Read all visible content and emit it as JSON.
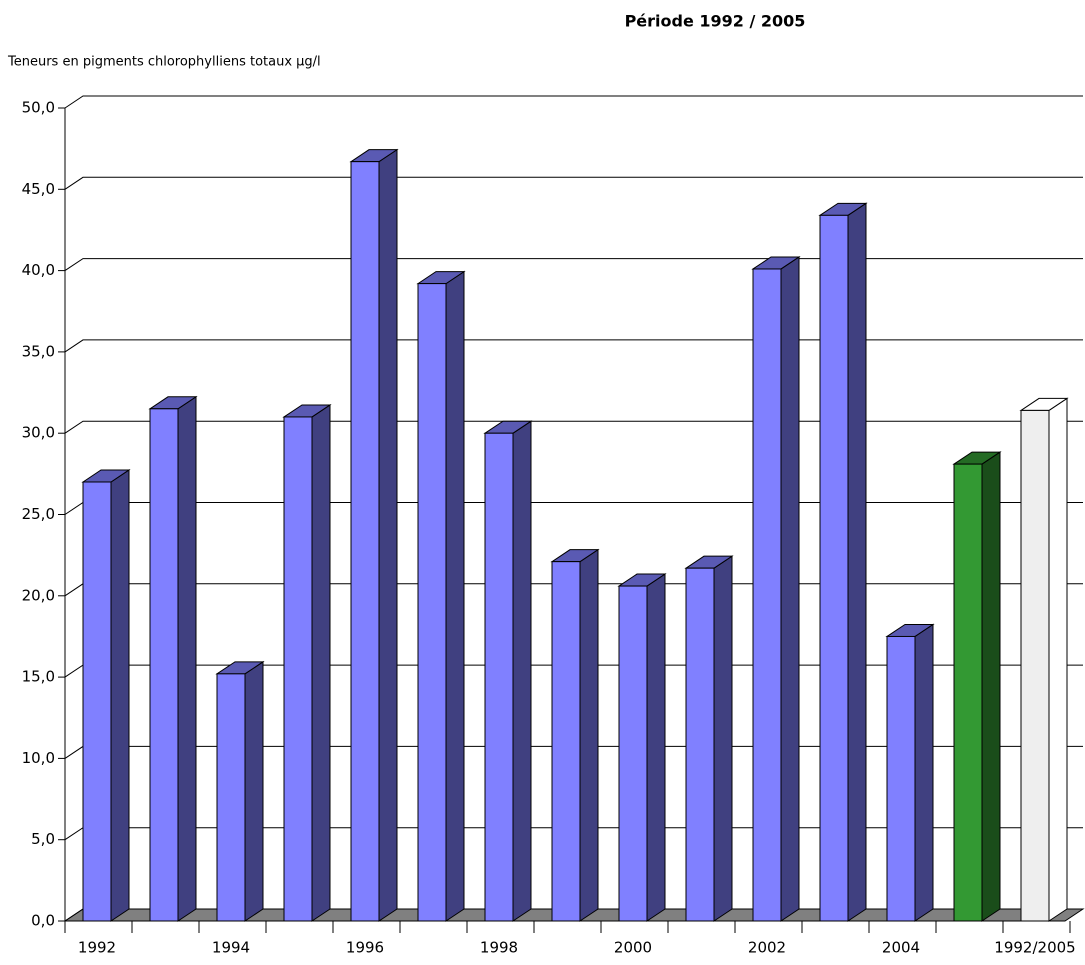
{
  "chart_data": {
    "type": "bar3d",
    "title": "Période 1992 / 2005",
    "y_axis_label": "Teneurs en pigments chlorophylliens totaux µg/l",
    "categories": [
      "1992",
      null,
      "1994",
      null,
      "1996",
      null,
      "1998",
      null,
      "2000",
      null,
      "2002",
      null,
      "2004",
      null,
      "1992/2005"
    ],
    "values": [
      27.0,
      31.5,
      15.2,
      31.0,
      46.7,
      39.2,
      30.0,
      22.1,
      20.6,
      21.7,
      40.1,
      43.4,
      17.5,
      28.1,
      31.4
    ],
    "colors": [
      "#8080ff",
      "#8080ff",
      "#8080ff",
      "#8080ff",
      "#8080ff",
      "#8080ff",
      "#8080ff",
      "#8080ff",
      "#8080ff",
      "#8080ff",
      "#8080ff",
      "#8080ff",
      "#8080ff",
      "#339933",
      "#eeeeee"
    ],
    "ylim": [
      0,
      50
    ],
    "yticks": [
      {
        "value": 0,
        "label": "0,0"
      },
      {
        "value": 5,
        "label": "5,0"
      },
      {
        "value": 10,
        "label": "10,0"
      },
      {
        "value": 15,
        "label": "15,0"
      },
      {
        "value": 20,
        "label": "20,0"
      },
      {
        "value": 25,
        "label": "25,0"
      },
      {
        "value": 30,
        "label": "30,0"
      },
      {
        "value": 35,
        "label": "35,0"
      },
      {
        "value": 40,
        "label": "40,0"
      },
      {
        "value": 45,
        "label": "45,0"
      },
      {
        "value": 50,
        "label": "50,0"
      }
    ],
    "grid": true
  }
}
